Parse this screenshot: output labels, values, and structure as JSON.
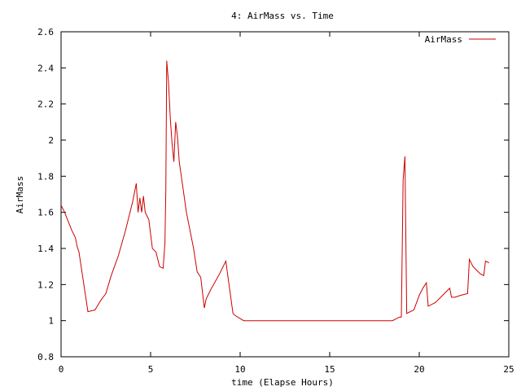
{
  "chart_data": {
    "type": "line",
    "title": "4: AirMass vs. Time",
    "xlabel": "time (Elapse Hours)",
    "ylabel": "AirMass",
    "xlim": [
      0,
      25
    ],
    "ylim": [
      0.8,
      2.6
    ],
    "xticks": [
      0,
      5,
      10,
      15,
      20,
      25
    ],
    "xtick_labels": [
      "0",
      "5",
      "10",
      "15",
      "20",
      "25"
    ],
    "yticks": [
      0.8,
      1,
      1.2,
      1.4,
      1.6,
      1.8,
      2,
      2.2,
      2.4,
      2.6
    ],
    "ytick_labels": [
      "0.8",
      "1",
      "1.2",
      "1.4",
      "1.6",
      "1.8",
      "2",
      "2.2",
      "2.4",
      "2.6"
    ],
    "grid": false,
    "legend_position": "top-right",
    "series": [
      {
        "name": "AirMass",
        "color": "#cc0000",
        "x": [
          0,
          0.2,
          0.4,
          0.6,
          0.8,
          0.9,
          1.0,
          1.5,
          1.9,
          2.2,
          2.5,
          2.8,
          3.2,
          3.6,
          4.0,
          4.2,
          4.3,
          4.4,
          4.5,
          4.6,
          4.7,
          4.8,
          4.9,
          5.0,
          5.1,
          5.2,
          5.3,
          5.5,
          5.7,
          5.8,
          5.85,
          5.9,
          6.0,
          6.1,
          6.2,
          6.3,
          6.4,
          6.5,
          6.6,
          6.8,
          7.0,
          7.2,
          7.4,
          7.6,
          7.8,
          8.0,
          8.1,
          8.2,
          8.4,
          8.8,
          9.2,
          9.6,
          9.7,
          10.2,
          10.5,
          12,
          14,
          16,
          18.5,
          18.9,
          19.0,
          19.1,
          19.2,
          19.3,
          19.7,
          20.0,
          20.2,
          20.4,
          20.5,
          20.9,
          21.3,
          21.7,
          21.8,
          22.0,
          22.3,
          22.7,
          22.8,
          23.0,
          23.2,
          23.4,
          23.6,
          23.7,
          23.9
        ],
        "y": [
          1.64,
          1.6,
          1.55,
          1.5,
          1.46,
          1.41,
          1.38,
          1.05,
          1.06,
          1.11,
          1.15,
          1.25,
          1.36,
          1.5,
          1.66,
          1.76,
          1.6,
          1.68,
          1.6,
          1.69,
          1.6,
          1.58,
          1.56,
          1.48,
          1.4,
          1.39,
          1.38,
          1.3,
          1.29,
          1.43,
          1.72,
          2.44,
          2.32,
          2.12,
          1.98,
          1.88,
          2.1,
          2.02,
          1.88,
          1.74,
          1.6,
          1.5,
          1.4,
          1.27,
          1.24,
          1.07,
          1.12,
          1.14,
          1.18,
          1.25,
          1.33,
          1.04,
          1.03,
          1.0,
          1.0,
          1.0,
          1.0,
          1.0,
          1.0,
          1.02,
          1.02,
          1.78,
          1.91,
          1.04,
          1.06,
          1.14,
          1.18,
          1.21,
          1.08,
          1.1,
          1.14,
          1.18,
          1.13,
          1.13,
          1.14,
          1.15,
          1.34,
          1.3,
          1.28,
          1.26,
          1.25,
          1.33,
          1.32
        ]
      }
    ]
  }
}
